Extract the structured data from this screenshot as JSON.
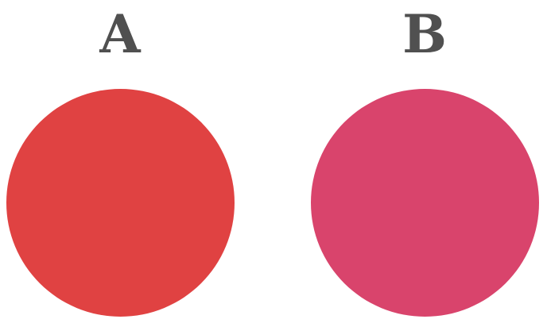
{
  "options": [
    {
      "label": "A",
      "color": "#E04242"
    },
    {
      "label": "B",
      "color": "#D9446C"
    }
  ]
}
